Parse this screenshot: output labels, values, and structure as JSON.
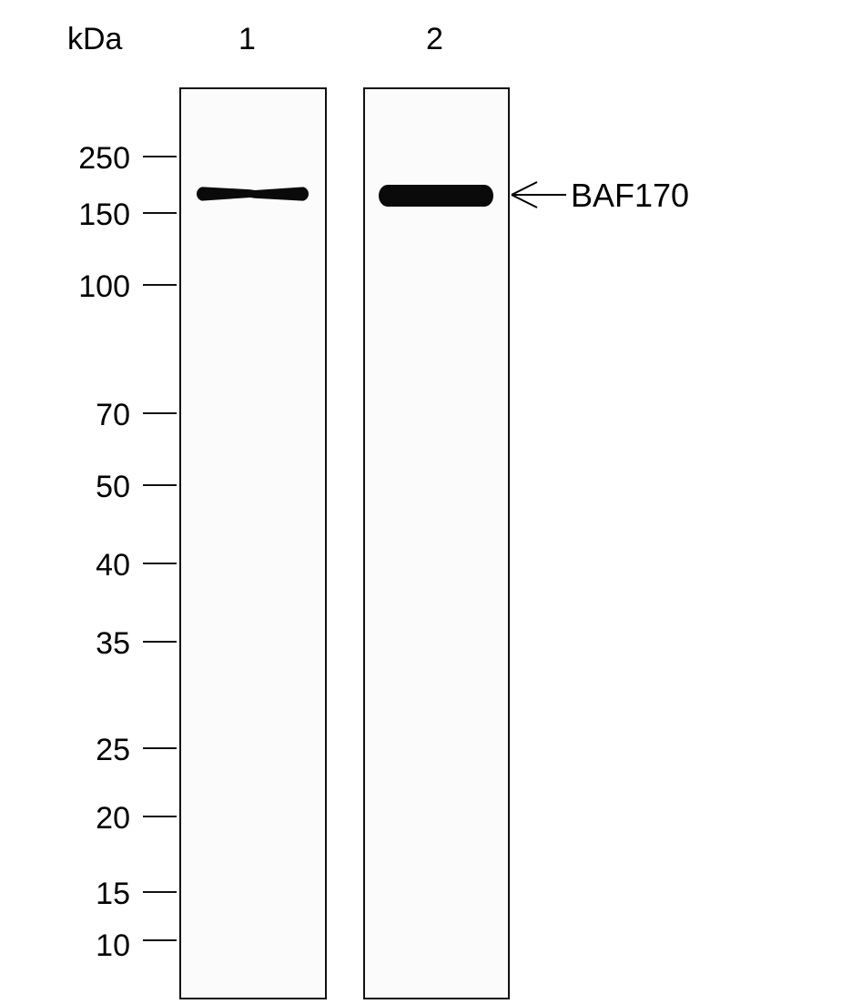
{
  "header": {
    "unit_label": "kDa",
    "lanes": [
      "1",
      "2"
    ]
  },
  "markers_kda": [
    "250",
    "150",
    "100",
    "70",
    "50",
    "40",
    "35",
    "25",
    "20",
    "15",
    "10"
  ],
  "band_annotation": {
    "label": "BAF170",
    "arrow_icon": "left-arrow-icon"
  },
  "bands": [
    {
      "lane": "1",
      "intensity": "moderate"
    },
    {
      "lane": "2",
      "intensity": "strong"
    }
  ]
}
